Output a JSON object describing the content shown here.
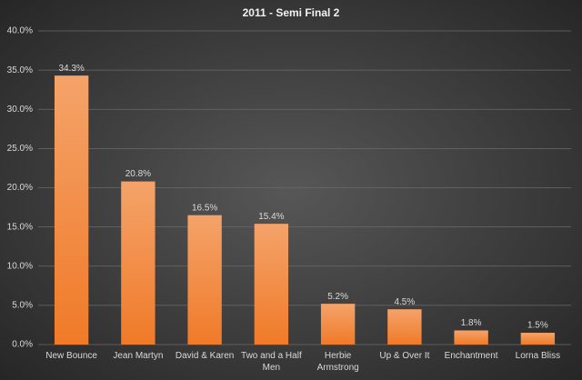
{
  "chart_data": {
    "type": "bar",
    "title": "2011 - Semi Final 2",
    "categories": [
      "New Bounce",
      "Jean Martyn",
      "David & Karen",
      "Two and a Half Men",
      "Herbie Armstrong",
      "Up & Over It",
      "Enchantment",
      "Lorna Bliss"
    ],
    "values": [
      34.3,
      20.8,
      16.5,
      15.4,
      5.2,
      4.5,
      1.8,
      1.5
    ],
    "value_labels": [
      "34.3%",
      "20.8%",
      "16.5%",
      "15.4%",
      "5.2%",
      "4.5%",
      "1.8%",
      "1.5%"
    ],
    "color": "#f07a28",
    "ylim": [
      0,
      40
    ],
    "yticks": [
      {
        "value": 0,
        "label": "0.0%"
      },
      {
        "value": 5,
        "label": "5.0%"
      },
      {
        "value": 10,
        "label": "10.0%"
      },
      {
        "value": 15,
        "label": "15.0%"
      },
      {
        "value": 20,
        "label": "20.0%"
      },
      {
        "value": 25,
        "label": "25.0%"
      },
      {
        "value": 30,
        "label": "30.0%"
      },
      {
        "value": 35,
        "label": "35.0%"
      },
      {
        "value": 40,
        "label": "40.0%"
      }
    ],
    "grid": true
  }
}
